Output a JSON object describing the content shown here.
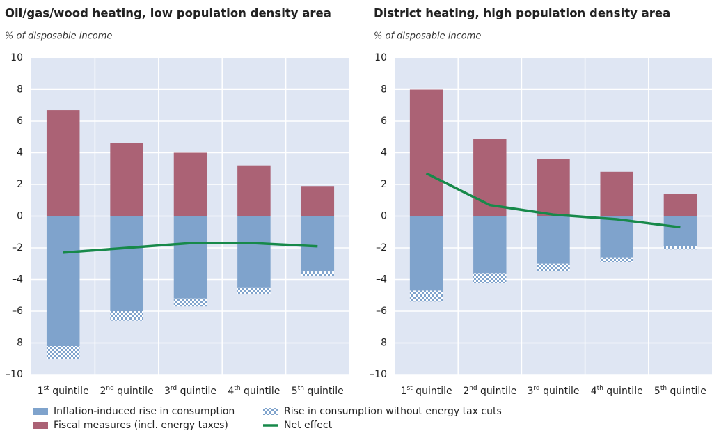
{
  "chart_data": [
    {
      "type": "bar",
      "title": "Oil/gas/wood heating, low population density area",
      "subtitle": "% of disposable income",
      "categories": [
        "1st quintile",
        "2nd quintile",
        "3rd quintile",
        "4th quintile",
        "5th quintile"
      ],
      "series": [
        {
          "name": "Inflation-induced rise in consumption",
          "color": "#7fa3cc",
          "values": [
            -8.2,
            -6.0,
            -5.2,
            -4.5,
            -3.5
          ]
        },
        {
          "name": "Fiscal measures (incl. energy taxes)",
          "color": "#ab6275",
          "values": [
            6.7,
            4.6,
            4.0,
            3.2,
            1.9
          ]
        },
        {
          "name": "Rise in consumption without energy tax cuts",
          "color": "#7fa3cc",
          "pattern": "checker",
          "values": [
            -0.8,
            -0.6,
            -0.5,
            -0.4,
            -0.3
          ]
        },
        {
          "name": "Net effect",
          "color": "#17894a",
          "type": "line",
          "values": [
            -2.3,
            -2.0,
            -1.7,
            -1.7,
            -1.9
          ]
        }
      ],
      "ylim": [
        -10,
        10
      ],
      "yticks": [
        {
          "value": -10,
          "label": "–10"
        },
        {
          "value": -8,
          "label": "–8"
        },
        {
          "value": -6,
          "label": "–6"
        },
        {
          "value": -4,
          "label": "–4"
        },
        {
          "value": -2,
          "label": "–2"
        },
        0,
        2,
        4,
        6,
        8,
        10
      ],
      "grid": true
    },
    {
      "type": "bar",
      "title": "District heating, high population density area",
      "subtitle": "% of disposable income",
      "categories": [
        "1st quintile",
        "2nd quintile",
        "3rd quintile",
        "4th quintile",
        "5th quintile"
      ],
      "series": [
        {
          "name": "Inflation-induced rise in consumption",
          "color": "#7fa3cc",
          "values": [
            -4.7,
            -3.6,
            -3.0,
            -2.6,
            -1.9
          ]
        },
        {
          "name": "Fiscal measures (incl. energy taxes)",
          "color": "#ab6275",
          "values": [
            8.0,
            4.9,
            3.6,
            2.8,
            1.4
          ]
        },
        {
          "name": "Rise in consumption without energy tax cuts",
          "color": "#7fa3cc",
          "pattern": "checker",
          "values": [
            -0.7,
            -0.6,
            -0.5,
            -0.3,
            -0.2
          ]
        },
        {
          "name": "Net effect",
          "color": "#17894a",
          "type": "line",
          "values": [
            2.7,
            0.7,
            0.1,
            -0.2,
            -0.7
          ]
        }
      ],
      "ylim": [
        -10,
        10
      ],
      "yticks": [
        {
          "value": -10,
          "label": "–10"
        },
        {
          "value": -8,
          "label": "–8"
        },
        {
          "value": -6,
          "label": "–6"
        },
        {
          "value": -4,
          "label": "–4"
        },
        {
          "value": -2,
          "label": "–2"
        },
        0,
        2,
        4,
        6,
        8,
        10
      ],
      "grid": true
    }
  ]
}
